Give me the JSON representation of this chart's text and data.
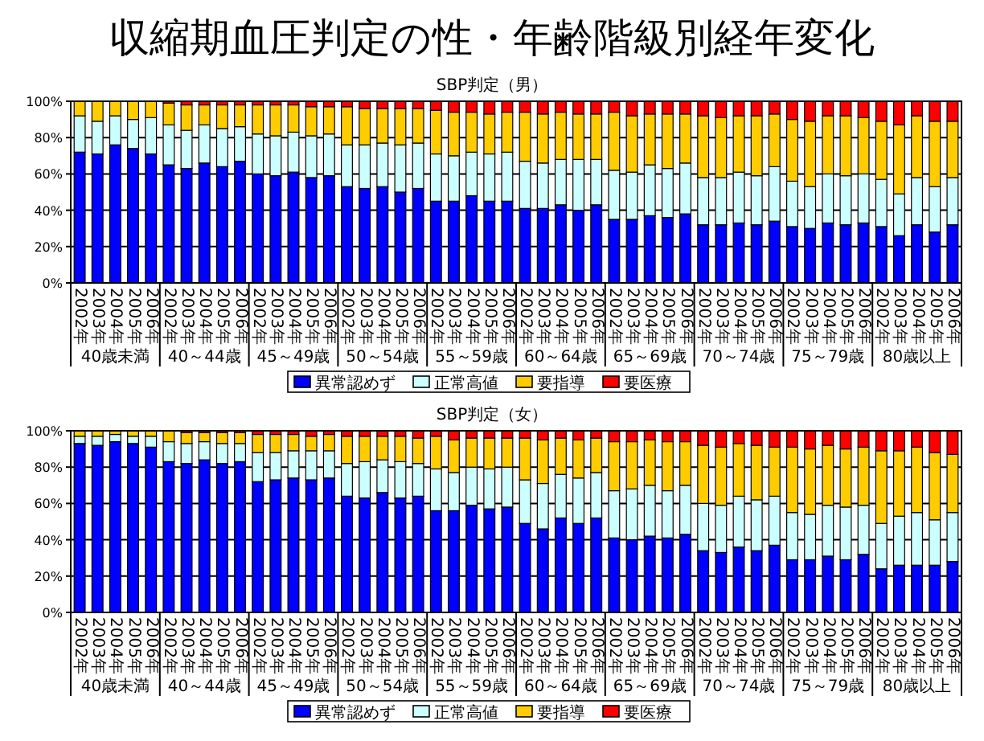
{
  "chart_data": [
    {
      "type": "bar",
      "stacked": true,
      "title": "収縮期血圧判定の性・年齢階級別経年変化",
      "subtitle": "SBP判定（男）",
      "categories": [
        "2002年",
        "2003年",
        "2004年",
        "2005年",
        "2006年",
        "2002年",
        "2003年",
        "2004年",
        "2005年",
        "2006年",
        "2002年",
        "2003年",
        "2004年",
        "2005年",
        "2006年",
        "2002年",
        "2003年",
        "2004年",
        "2005年",
        "2006年",
        "2002年",
        "2003年",
        "2004年",
        "2005年",
        "2006年",
        "2002年",
        "2003年",
        "2004年",
        "2005年",
        "2006年",
        "2002年",
        "2003年",
        "2004年",
        "2005年",
        "2006年",
        "2002年",
        "2003年",
        "2004年",
        "2005年",
        "2006年",
        "2002年",
        "2003年",
        "2004年",
        "2005年",
        "2006年",
        "2002年",
        "2003年",
        "2004年",
        "2005年",
        "2006年"
      ],
      "annotations": [
        "40歳未満",
        "40～44歳",
        "45～49歳",
        "50～54歳",
        "55～59歳",
        "60～64歳",
        "65～69歳",
        "70～74歳",
        "75～79歳",
        "80歳以上"
      ],
      "ylim": [
        0,
        100
      ],
      "yticks": [
        {
          "value": 0,
          "label": "0%"
        },
        {
          "value": 20,
          "label": "20%"
        },
        {
          "value": 40,
          "label": "40%"
        },
        {
          "value": 60,
          "label": "60%"
        },
        {
          "value": 80,
          "label": "80%"
        },
        {
          "value": 100,
          "label": "100%"
        }
      ],
      "grid": "y",
      "legend": "bottom",
      "series": [
        {
          "name": "異常認めず",
          "color": "#0000ff",
          "values": [
            72,
            71,
            76,
            74,
            71,
            65,
            63,
            66,
            64,
            67,
            60,
            59,
            61,
            58,
            59,
            53,
            52,
            53,
            50,
            52,
            45,
            45,
            48,
            45,
            45,
            41,
            41,
            43,
            40,
            43,
            35,
            35,
            37,
            36,
            38,
            32,
            32,
            33,
            32,
            34,
            31,
            30,
            33,
            32,
            33,
            31,
            26,
            32,
            28,
            32
          ]
        },
        {
          "name": "正常高値",
          "color": "#ccffff",
          "values": [
            20,
            18,
            16,
            16,
            20,
            22,
            21,
            21,
            21,
            19,
            22,
            22,
            22,
            23,
            23,
            23,
            24,
            24,
            26,
            25,
            26,
            25,
            24,
            26,
            27,
            26,
            25,
            25,
            28,
            25,
            27,
            26,
            28,
            27,
            28,
            26,
            26,
            28,
            27,
            30,
            25,
            23,
            27,
            27,
            27,
            26,
            23,
            26,
            25,
            26
          ]
        },
        {
          "name": "要指導",
          "color": "#ffcc00",
          "values": [
            8,
            11,
            8,
            10,
            9,
            12,
            14,
            11,
            13,
            12,
            16,
            17,
            15,
            16,
            15,
            21,
            20,
            19,
            20,
            19,
            24,
            24,
            22,
            22,
            22,
            27,
            27,
            26,
            25,
            25,
            32,
            31,
            28,
            30,
            27,
            34,
            33,
            31,
            33,
            29,
            34,
            36,
            32,
            33,
            31,
            32,
            38,
            34,
            36,
            31
          ]
        },
        {
          "name": "要医療",
          "color": "#ff0000",
          "values": [
            0,
            0,
            0,
            0,
            0,
            1,
            2,
            2,
            2,
            2,
            2,
            2,
            2,
            3,
            3,
            3,
            4,
            4,
            4,
            4,
            5,
            6,
            6,
            7,
            6,
            6,
            7,
            6,
            7,
            7,
            6,
            8,
            7,
            7,
            7,
            8,
            9,
            8,
            8,
            7,
            10,
            11,
            8,
            8,
            9,
            11,
            13,
            8,
            11,
            11
          ]
        }
      ]
    },
    {
      "type": "bar",
      "stacked": true,
      "title": "SBP判定（女）",
      "categories": [
        "2002年",
        "2003年",
        "2004年",
        "2005年",
        "2006年",
        "2002年",
        "2003年",
        "2004年",
        "2005年",
        "2006年",
        "2002年",
        "2003年",
        "2004年",
        "2005年",
        "2006年",
        "2002年",
        "2003年",
        "2004年",
        "2005年",
        "2006年",
        "2002年",
        "2003年",
        "2004年",
        "2005年",
        "2006年",
        "2002年",
        "2003年",
        "2004年",
        "2005年",
        "2006年",
        "2002年",
        "2003年",
        "2004年",
        "2005年",
        "2006年",
        "2002年",
        "2003年",
        "2004年",
        "2005年",
        "2006年",
        "2002年",
        "2003年",
        "2004年",
        "2005年",
        "2006年",
        "2002年",
        "2003年",
        "2004年",
        "2005年",
        "2006年"
      ],
      "annotations": [
        "40歳未満",
        "40～44歳",
        "45～49歳",
        "50～54歳",
        "55～59歳",
        "60～64歳",
        "65～69歳",
        "70～74歳",
        "75～79歳",
        "80歳以上"
      ],
      "ylim": [
        0,
        100
      ],
      "yticks": [
        {
          "value": 0,
          "label": "0%"
        },
        {
          "value": 20,
          "label": "20%"
        },
        {
          "value": 40,
          "label": "40%"
        },
        {
          "value": 60,
          "label": "60%"
        },
        {
          "value": 80,
          "label": "80%"
        },
        {
          "value": 100,
          "label": "100%"
        }
      ],
      "grid": "y",
      "legend": "bottom",
      "series": [
        {
          "name": "異常認めず",
          "color": "#0000ff",
          "values": [
            93,
            92,
            94,
            93,
            91,
            83,
            82,
            84,
            82,
            83,
            72,
            73,
            74,
            73,
            74,
            64,
            63,
            66,
            63,
            64,
            56,
            56,
            59,
            57,
            58,
            49,
            46,
            52,
            49,
            52,
            41,
            40,
            42,
            41,
            43,
            34,
            33,
            36,
            34,
            37,
            29,
            29,
            31,
            29,
            32,
            24,
            26,
            26,
            26,
            28
          ]
        },
        {
          "name": "正常高値",
          "color": "#ccffff",
          "values": [
            4,
            5,
            4,
            4,
            6,
            11,
            11,
            10,
            11,
            10,
            16,
            15,
            15,
            16,
            15,
            18,
            20,
            18,
            20,
            18,
            23,
            21,
            21,
            22,
            22,
            24,
            25,
            24,
            25,
            25,
            26,
            28,
            28,
            26,
            27,
            26,
            26,
            28,
            28,
            27,
            26,
            25,
            28,
            29,
            27,
            25,
            27,
            29,
            25,
            27
          ]
        },
        {
          "name": "要指導",
          "color": "#ffcc00",
          "values": [
            3,
            3,
            2,
            3,
            3,
            6,
            6,
            5,
            6,
            6,
            10,
            10,
            9,
            8,
            9,
            15,
            14,
            13,
            14,
            14,
            18,
            18,
            16,
            17,
            16,
            23,
            24,
            20,
            21,
            19,
            27,
            26,
            25,
            27,
            24,
            32,
            32,
            29,
            30,
            27,
            36,
            36,
            33,
            32,
            32,
            40,
            36,
            36,
            37,
            32
          ]
        },
        {
          "name": "要医療",
          "color": "#ff0000",
          "values": [
            0,
            0,
            0,
            0,
            0,
            0,
            1,
            1,
            1,
            1,
            2,
            2,
            2,
            3,
            2,
            3,
            3,
            3,
            3,
            4,
            3,
            5,
            4,
            4,
            4,
            4,
            5,
            4,
            5,
            4,
            6,
            6,
            5,
            6,
            6,
            8,
            9,
            7,
            8,
            9,
            9,
            10,
            8,
            10,
            9,
            11,
            11,
            9,
            12,
            13
          ]
        }
      ]
    }
  ]
}
